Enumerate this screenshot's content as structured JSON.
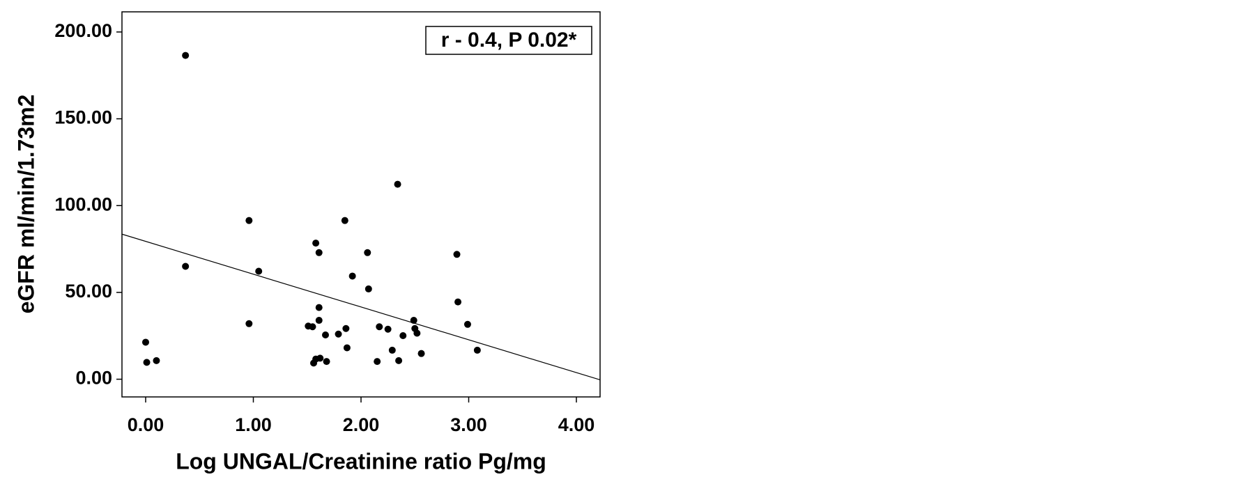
{
  "chart_data": {
    "type": "scatter",
    "x_label": "Log UNGAL/Creatinine ratio Pg/mg",
    "y_label": "eGFR ml/min/1.73m2",
    "annotation": "r - 0.4, P 0.02*",
    "color": "#000000",
    "x": [
      0.0,
      0.01,
      0.1,
      0.37,
      0.37,
      0.96,
      0.96,
      1.05,
      1.51,
      1.55,
      1.56,
      1.58,
      1.58,
      1.61,
      1.61,
      1.61,
      1.62,
      1.67,
      1.68,
      1.79,
      1.85,
      1.86,
      1.87,
      1.92,
      2.06,
      2.07,
      2.15,
      2.17,
      2.25,
      2.29,
      2.34,
      2.35,
      2.39,
      2.49,
      2.5,
      2.52,
      2.56,
      2.89,
      2.9,
      2.99,
      3.08
    ],
    "values": [
      21.3,
      9.7,
      10.7,
      186.5,
      65,
      91.4,
      32,
      62.2,
      30.6,
      30.2,
      9.3,
      78.4,
      11.6,
      72.9,
      33.9,
      41.3,
      12.1,
      25.5,
      10.2,
      26,
      91.4,
      29.2,
      18.1,
      59.4,
      72.9,
      52,
      10.2,
      30.2,
      28.8,
      16.7,
      112.3,
      10.7,
      25.1,
      33.9,
      29.2,
      26.5,
      14.8,
      71.9,
      44.5,
      31.6,
      16.7
    ],
    "fit_line": {
      "intercept": 79.4,
      "slope": -18.9
    },
    "xlim": [
      -0.22,
      4.22
    ],
    "ylim": [
      -10.2,
      211.6
    ],
    "xticks": [
      {
        "value": 0,
        "label": "0.00"
      },
      {
        "value": 1,
        "label": "1.00"
      },
      {
        "value": 2,
        "label": "2.00"
      },
      {
        "value": 3,
        "label": "3.00"
      },
      {
        "value": 4,
        "label": "4.00"
      }
    ],
    "yticks": [
      {
        "value": 0,
        "label": "0.00"
      },
      {
        "value": 50,
        "label": "50.00"
      },
      {
        "value": 100,
        "label": "100.00"
      },
      {
        "value": 150,
        "label": "150.00"
      },
      {
        "value": 200,
        "label": "200.00"
      }
    ],
    "grid": false
  }
}
